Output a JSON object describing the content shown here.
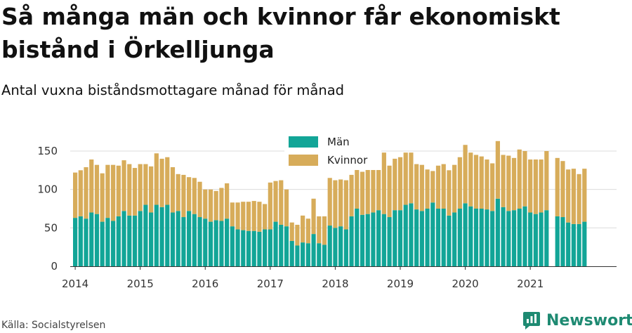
{
  "title": "Så många män och kvinnor får ekonomiskt bistånd i Örkelljunga",
  "subtitle": "Antal vuxna biståndsmottagare månad för månad",
  "source": "Källa: Socialstyrelsen",
  "brand": {
    "name": "Newsworthy",
    "icon": "newsworthy-logo-icon"
  },
  "colors": {
    "men": "#12a597",
    "women": "#d7ac5a",
    "grid": "#dcdcdc",
    "axis": "#333333",
    "brand": "#1e8a72"
  },
  "chart_data": {
    "type": "bar",
    "stacked": true,
    "grid": true,
    "legend_position": "top-center",
    "ylim": [
      0,
      165
    ],
    "yticks": [
      0,
      50,
      100,
      150
    ],
    "xticks": [
      "2014",
      "2015",
      "2016",
      "2017",
      "2018",
      "2019",
      "2020",
      "2021"
    ],
    "start_month": "2014-01",
    "series": [
      {
        "name": "Män",
        "values": [
          63,
          65,
          62,
          70,
          68,
          58,
          63,
          59,
          65,
          72,
          66,
          66,
          72,
          80,
          70,
          80,
          77,
          80,
          70,
          72,
          64,
          72,
          68,
          64,
          62,
          58,
          60,
          59,
          62,
          52,
          48,
          47,
          46,
          46,
          45,
          48,
          48,
          58,
          54,
          52,
          33,
          27,
          31,
          30,
          42,
          30,
          28,
          53,
          50,
          52,
          48,
          65,
          75,
          67,
          68,
          70,
          73,
          68,
          64,
          73,
          73,
          80,
          82,
          74,
          72,
          75,
          83,
          75,
          75,
          66,
          70,
          75,
          82,
          78,
          75,
          75,
          74,
          72,
          88,
          77,
          72,
          73,
          75,
          78,
          70,
          68,
          70,
          73,
          null,
          65,
          64,
          57,
          55,
          55,
          58
        ]
      },
      {
        "name": "Kvinnor",
        "values": [
          59,
          60,
          67,
          69,
          64,
          63,
          69,
          73,
          66,
          66,
          67,
          62,
          61,
          53,
          60,
          67,
          63,
          62,
          59,
          48,
          55,
          44,
          47,
          46,
          38,
          42,
          38,
          43,
          46,
          31,
          35,
          37,
          38,
          39,
          39,
          33,
          61,
          53,
          58,
          48,
          24,
          27,
          35,
          32,
          46,
          35,
          37,
          62,
          62,
          61,
          64,
          54,
          69,
          56,
          58,
          61,
          66,
          80,
          67,
          67,
          69,
          68,
          66,
          59,
          60,
          51,
          41,
          56,
          58,
          59,
          62,
          67,
          76,
          70,
          70,
          68,
          65,
          62,
          75,
          68,
          72,
          68,
          77,
          72,
          69,
          71,
          69,
          77,
          null,
          76,
          73,
          69,
          72,
          65,
          69
        ]
      }
    ]
  }
}
